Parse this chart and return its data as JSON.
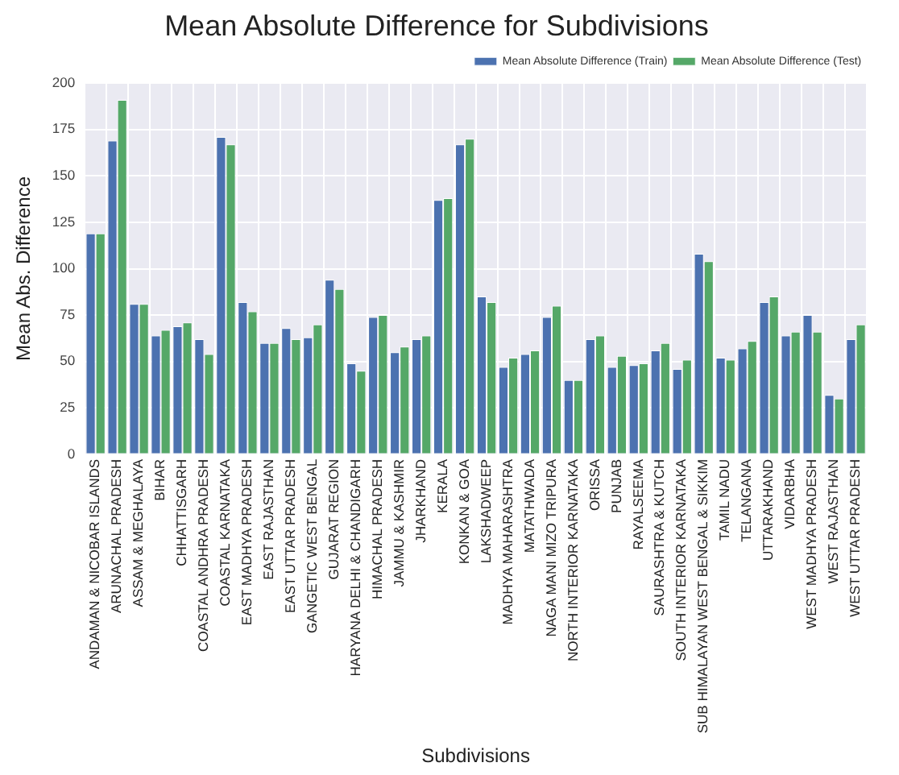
{
  "chart_data": {
    "type": "bar",
    "title": "Mean Absolute Difference for Subdivisions",
    "xlabel": "Subdivisions",
    "ylabel": "Mean Abs. Difference",
    "categories": [
      "ANDAMAN & NICOBAR ISLANDS",
      "ARUNACHAL PRADESH",
      "ASSAM & MEGHALAYA",
      "BIHAR",
      "CHHATTISGARH",
      "COASTAL ANDHRA PRADESH",
      "COASTAL KARNATAKA",
      "EAST MADHYA PRADESH",
      "EAST RAJASTHAN",
      "EAST UTTAR PRADESH",
      "GANGETIC WEST BENGAL",
      "GUJARAT REGION",
      "HARYANA DELHI & CHANDIGARH",
      "HIMACHAL PRADESH",
      "JAMMU & KASHMIR",
      "JHARKHAND",
      "KERALA",
      "KONKAN & GOA",
      "LAKSHADWEEP",
      "MADHYA MAHARASHTRA",
      "MATATHWADA",
      "NAGA MANI MIZO TRIPURA",
      "NORTH INTERIOR KARNATAKA",
      "ORISSA",
      "PUNJAB",
      "RAYALSEEMA",
      "SAURASHTRA & KUTCH",
      "SOUTH INTERIOR KARNATAKA",
      "SUB HIMALAYAN WEST BENGAL & SIKKIM",
      "TAMIL NADU",
      "TELANGANA",
      "UTTARAKHAND",
      "VIDARBHA",
      "WEST MADHYA PRADESH",
      "WEST RAJASTHAN",
      "WEST UTTAR PRADESH"
    ],
    "series": [
      {
        "name": "Mean Absolute Difference (Train)",
        "color": "#4c72b0",
        "values": [
          119,
          169,
          81,
          64,
          69,
          62,
          171,
          82,
          60,
          68,
          63,
          94,
          49,
          74,
          55,
          62,
          137,
          167,
          85,
          47,
          54,
          74,
          40,
          62,
          47,
          48,
          56,
          46,
          108,
          52,
          57,
          82,
          64,
          75,
          32,
          62
        ]
      },
      {
        "name": "Mean Absolute Difference (Test)",
        "color": "#55a868",
        "values": [
          119,
          191,
          81,
          67,
          71,
          54,
          167,
          77,
          60,
          62,
          70,
          89,
          45,
          75,
          58,
          64,
          138,
          170,
          82,
          52,
          56,
          80,
          40,
          64,
          53,
          49,
          60,
          51,
          104,
          51,
          61,
          85,
          66,
          66,
          30,
          70
        ]
      }
    ],
    "ylim": [
      0,
      200
    ],
    "yticks": [
      0,
      25,
      50,
      75,
      100,
      125,
      150,
      175,
      200
    ],
    "grid": true,
    "legend": "top right"
  }
}
